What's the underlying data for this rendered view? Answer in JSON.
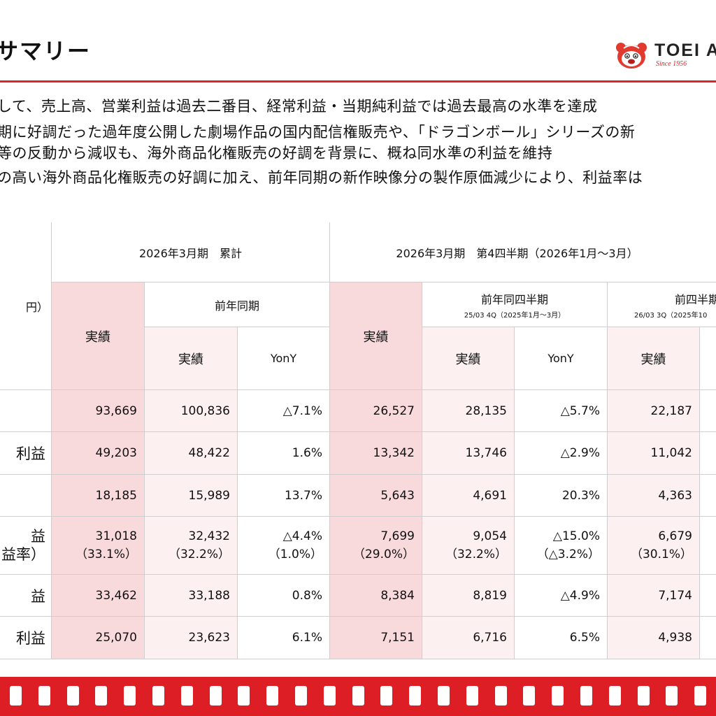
{
  "header": {
    "title": "サマリー",
    "logo_text": "TOEI A",
    "logo_sub": "Since 1956"
  },
  "bullets": [
    "して、売上高、営業利益は過去二番目、経常利益・当期純利益では過去最高の水準を達成",
    "期に好調だった過年度公開した劇場作品の国内配信権販売や、「ドラゴンボール」シリーズの新",
    "等の反動から減収も、海外商品化権販売の好調を背景に、概ね同水準の利益を維持",
    "の高い海外商品化権販売の好調に加え、前年同期の新作映像分の製作原価減少により、利益率は"
  ],
  "table": {
    "unit_label": "円）",
    "group1": "2026年3月期　累計",
    "group2": "2026年3月期　第4四半期（2026年1月～3月）",
    "prior_year": "前年同期",
    "prior_quarter_year": "前年同四半期",
    "prior_quarter_year_sub": "25/03 4Q（2025年1月～3月）",
    "prior_quarter": "前四半期",
    "prior_quarter_sub": "26/03 3Q（2025年10",
    "actual": "実績",
    "yony": "YonY",
    "rows": [
      {
        "label": "",
        "label2": "",
        "c1": "93,669",
        "c1b": "",
        "c2": "100,836",
        "c2b": "",
        "c3": "△7.1%",
        "c3b": "",
        "c4": "26,527",
        "c4b": "",
        "c5": "28,135",
        "c5b": "",
        "c6": "△5.7%",
        "c6b": "",
        "c7": "22,187",
        "c7b": ""
      },
      {
        "label": "利益",
        "label2": "",
        "c1": "49,203",
        "c1b": "",
        "c2": "48,422",
        "c2b": "",
        "c3": "1.6%",
        "c3b": "",
        "c4": "13,342",
        "c4b": "",
        "c5": "13,746",
        "c5b": "",
        "c6": "△2.9%",
        "c6b": "",
        "c7": "11,042",
        "c7b": ""
      },
      {
        "label": "",
        "label2": "",
        "c1": "18,185",
        "c1b": "",
        "c2": "15,989",
        "c2b": "",
        "c3": "13.7%",
        "c3b": "",
        "c4": "5,643",
        "c4b": "",
        "c5": "4,691",
        "c5b": "",
        "c6": "20.3%",
        "c6b": "",
        "c7": "4,363",
        "c7b": ""
      },
      {
        "label": "益",
        "label2": "益率）",
        "c1": "31,018",
        "c1b": "（33.1%）",
        "c2": "32,432",
        "c2b": "（32.2%）",
        "c3": "△4.4%",
        "c3b": "（1.0%）",
        "c4": "7,699",
        "c4b": "（29.0%）",
        "c5": "9,054",
        "c5b": "（32.2%）",
        "c6": "△15.0%",
        "c6b": "（△3.2%）",
        "c7": "6,679",
        "c7b": "（30.1%）"
      },
      {
        "label": "益",
        "label2": "",
        "c1": "33,462",
        "c1b": "",
        "c2": "33,188",
        "c2b": "",
        "c3": "0.8%",
        "c3b": "",
        "c4": "8,384",
        "c4b": "",
        "c5": "8,819",
        "c5b": "",
        "c6": "△4.9%",
        "c6b": "",
        "c7": "7,174",
        "c7b": ""
      },
      {
        "label": "利益",
        "label2": "",
        "c1": "25,070",
        "c1b": "",
        "c2": "23,623",
        "c2b": "",
        "c3": "6.1%",
        "c3b": "",
        "c4": "7,151",
        "c4b": "",
        "c5": "6,716",
        "c5b": "",
        "c6": "6.5%",
        "c6b": "",
        "c7": "4,938",
        "c7b": ""
      }
    ]
  },
  "colors": {
    "accent": "#d9262b",
    "actual_fill": "#f8d9dc",
    "prior_fill": "#fcf0f1",
    "film_strip": "#dd1f25"
  }
}
